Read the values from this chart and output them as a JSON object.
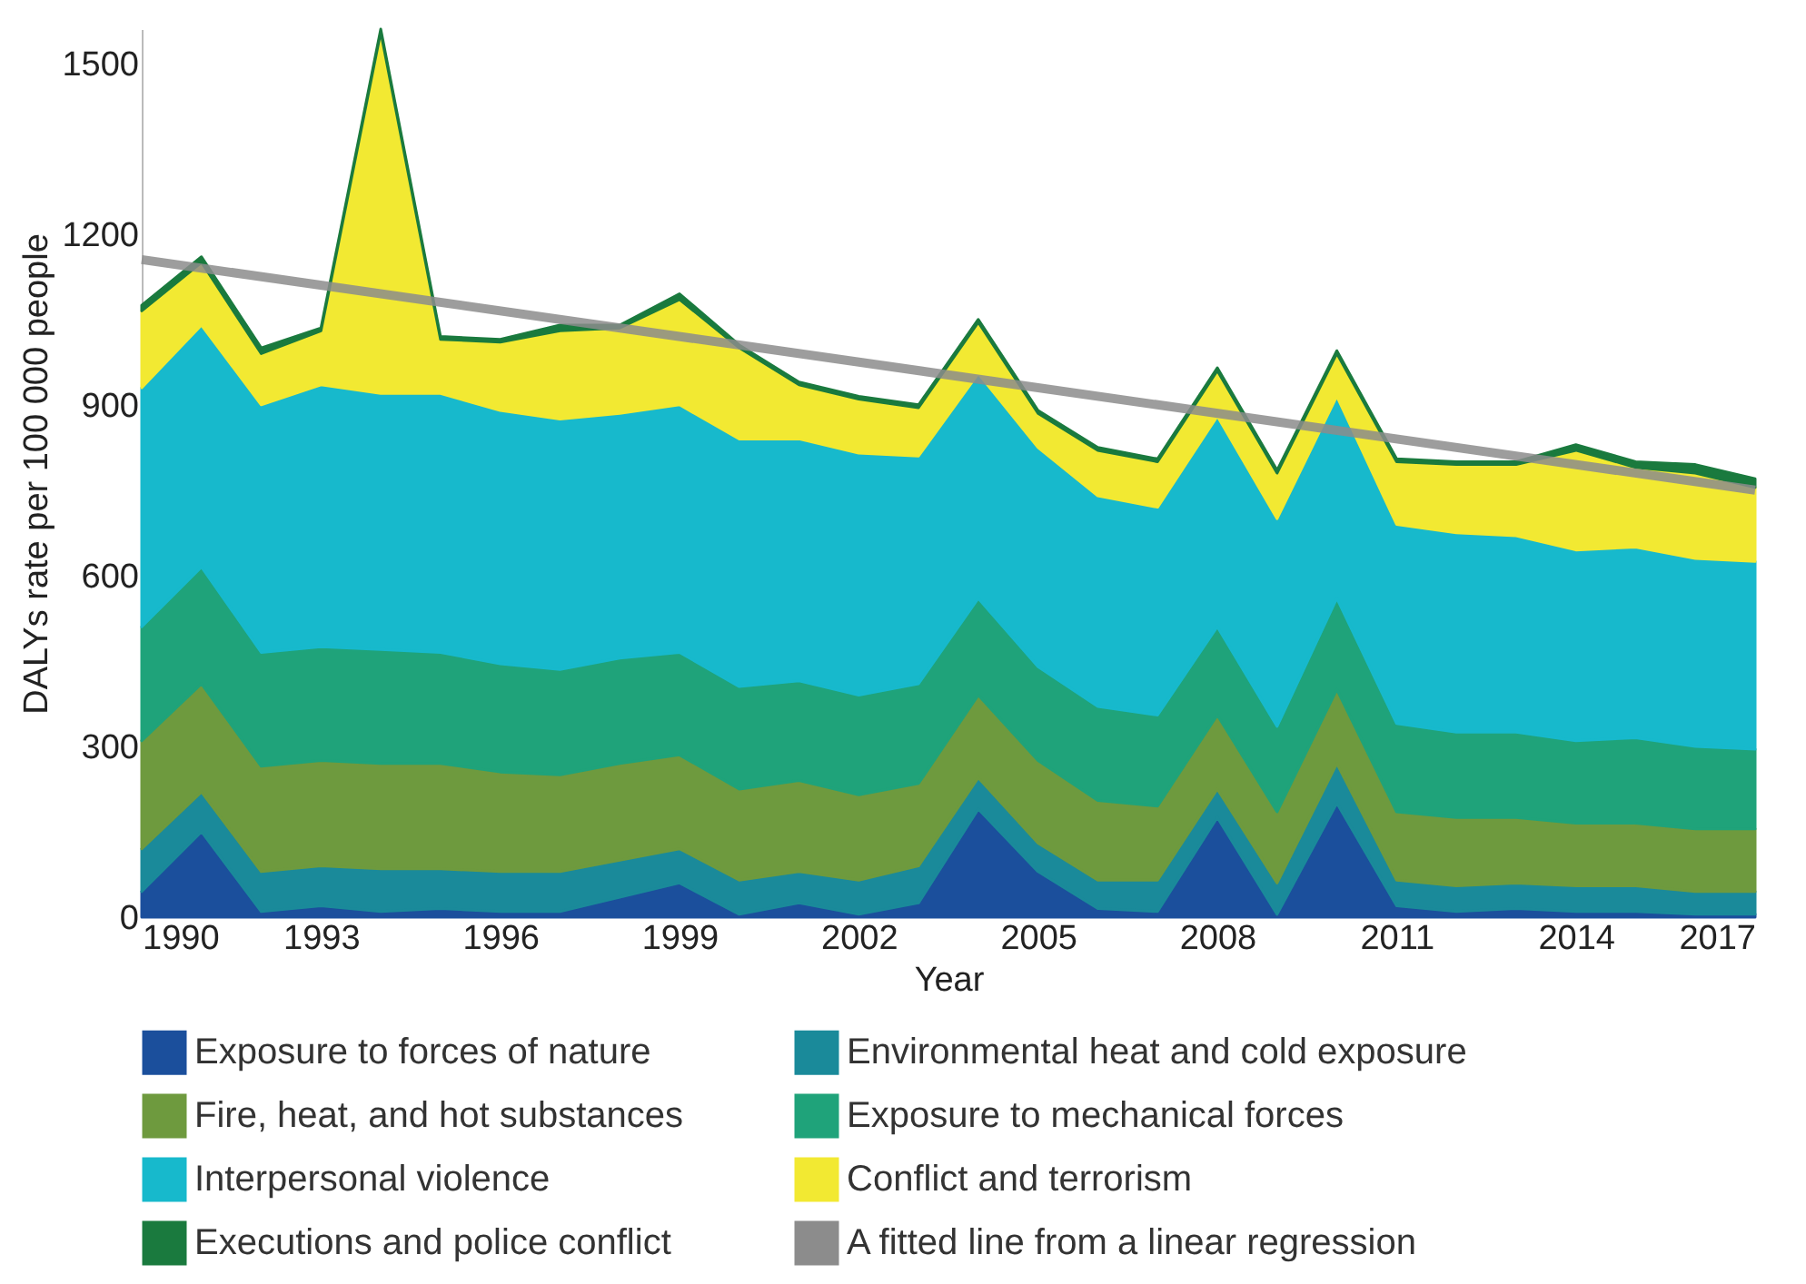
{
  "chart_data": {
    "type": "area",
    "stacked": true,
    "xlabel": "Year",
    "ylabel": "DALYs rate per 100 000 people",
    "x": [
      1990,
      1991,
      1992,
      1993,
      1994,
      1995,
      1996,
      1997,
      1998,
      1999,
      2000,
      2001,
      2002,
      2003,
      2004,
      2005,
      2006,
      2007,
      2008,
      2009,
      2010,
      2011,
      2012,
      2013,
      2014,
      2015,
      2016,
      2017
    ],
    "xlim": [
      1990,
      2017
    ],
    "xticks": [
      1990,
      1993,
      1996,
      1999,
      2002,
      2005,
      2008,
      2011,
      2014,
      2017
    ],
    "ylim": [
      0,
      1560
    ],
    "yticks": [
      0,
      300,
      600,
      900,
      1200,
      1500
    ],
    "grid": false,
    "legend": "bottom",
    "series": [
      {
        "name": "Exposure to forces of nature",
        "color": "#1b4f9c",
        "values": [
          45,
          150,
          10,
          20,
          10,
          15,
          10,
          10,
          35,
          60,
          5,
          25,
          5,
          25,
          190,
          80,
          15,
          10,
          175,
          5,
          200,
          20,
          10,
          15,
          10,
          10,
          5,
          5
        ]
      },
      {
        "name": "Environmental heat and cold exposure",
        "color": "#1a8a9a",
        "values": [
          75,
          70,
          70,
          70,
          75,
          70,
          70,
          70,
          65,
          60,
          60,
          55,
          60,
          65,
          55,
          50,
          50,
          55,
          50,
          55,
          70,
          45,
          45,
          45,
          45,
          45,
          40,
          40
        ]
      },
      {
        "name": "Fire, heat, and hot substances",
        "color": "#6e9a3e",
        "values": [
          190,
          190,
          185,
          185,
          185,
          185,
          175,
          170,
          170,
          165,
          160,
          160,
          150,
          145,
          145,
          145,
          140,
          130,
          130,
          125,
          130,
          120,
          120,
          115,
          110,
          110,
          110,
          110
        ]
      },
      {
        "name": "Exposure to mechanical forces",
        "color": "#1fa37a",
        "values": [
          200,
          205,
          200,
          200,
          200,
          195,
          190,
          185,
          185,
          180,
          180,
          175,
          175,
          175,
          170,
          165,
          165,
          160,
          155,
          150,
          160,
          155,
          150,
          150,
          145,
          150,
          145,
          140
        ]
      },
      {
        "name": "Interpersonal violence",
        "color": "#17b9cc",
        "values": [
          420,
          425,
          435,
          460,
          450,
          455,
          445,
          440,
          430,
          435,
          435,
          425,
          425,
          400,
          395,
          385,
          370,
          365,
          370,
          365,
          355,
          350,
          350,
          345,
          335,
          335,
          330,
          330
        ]
      },
      {
        "name": "Conflict and terrorism",
        "color": "#f2e932",
        "values": [
          135,
          110,
          90,
          95,
          635,
          95,
          120,
          155,
          150,
          185,
          160,
          95,
          95,
          85,
          90,
          60,
          80,
          80,
          80,
          80,
          75,
          110,
          120,
          125,
          175,
          140,
          150,
          130
        ]
      },
      {
        "name": "Executions and police conflict",
        "color": "#1a7a3e",
        "values": [
          10,
          10,
          10,
          5,
          5,
          5,
          5,
          10,
          5,
          10,
          5,
          5,
          5,
          5,
          5,
          5,
          5,
          5,
          5,
          5,
          5,
          5,
          5,
          5,
          10,
          10,
          15,
          15
        ]
      },
      {
        "name": "A fitted line from a linear regression",
        "type": "line",
        "color": "#8c8c8c",
        "x": [
          1990,
          2017
        ],
        "values": [
          1155,
          750
        ]
      }
    ]
  }
}
